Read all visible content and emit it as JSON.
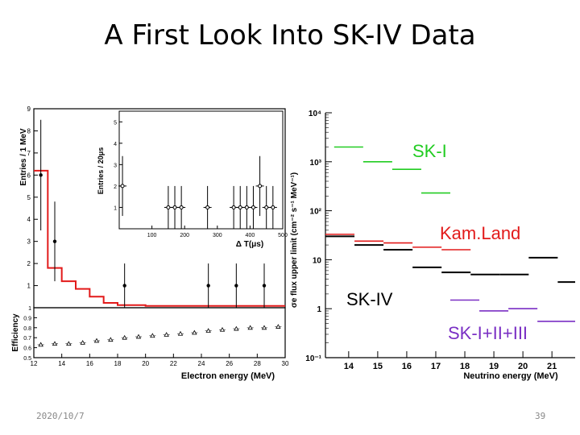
{
  "slide": {
    "title": "A First Look Into SK-IV Data",
    "date": "2020/10/7",
    "page_number": "39"
  },
  "colors": {
    "red": "#e21a1a",
    "green": "#22cc22",
    "purple": "#7a2fc4",
    "black": "#000000"
  },
  "chart_data": [
    {
      "id": "left-main",
      "type": "scatter",
      "title": "",
      "ylabel": "Entries / 1 MeV",
      "ylim": [
        0,
        9
      ],
      "xlim": [
        12,
        30
      ],
      "yticks": [
        1,
        2,
        3,
        4,
        5,
        6,
        7,
        8,
        9
      ],
      "data_points": [
        {
          "x": 12.5,
          "y": 6,
          "err": 2.5
        },
        {
          "x": 13.5,
          "y": 3,
          "err": 1.8
        },
        {
          "x": 18.5,
          "y": 1,
          "err": 1.0
        },
        {
          "x": 24.5,
          "y": 1,
          "err": 1.0
        },
        {
          "x": 26.5,
          "y": 1,
          "err": 1.0
        },
        {
          "x": 28.5,
          "y": 1,
          "err": 1.0
        }
      ],
      "mc_histogram": {
        "edges": [
          12,
          13,
          14,
          15,
          16,
          17,
          18,
          20,
          30
        ],
        "values": [
          6.2,
          1.8,
          1.2,
          0.85,
          0.5,
          0.22,
          0.12,
          0.08
        ]
      }
    },
    {
      "id": "left-efficiency",
      "type": "scatter",
      "ylabel": "Efficiency",
      "xlabel": "Electron energy (MeV)",
      "ylim": [
        0.5,
        1.0
      ],
      "xlim": [
        12,
        30
      ],
      "yticks": [
        0.5,
        0.6,
        0.7,
        0.8,
        0.9,
        1
      ],
      "xticks": [
        12,
        14,
        16,
        18,
        20,
        22,
        24,
        26,
        28,
        30
      ],
      "x": [
        12.5,
        13.5,
        14.5,
        15.5,
        16.5,
        17.5,
        18.5,
        19.5,
        20.5,
        21.5,
        22.5,
        23.5,
        24.5,
        25.5,
        26.5,
        27.5,
        28.5,
        29.5
      ],
      "y": [
        0.63,
        0.64,
        0.64,
        0.65,
        0.67,
        0.68,
        0.7,
        0.71,
        0.72,
        0.73,
        0.74,
        0.75,
        0.77,
        0.78,
        0.79,
        0.8,
        0.8,
        0.81
      ]
    },
    {
      "id": "inset",
      "type": "scatter",
      "ylabel": "Entries / 20μs",
      "xlabel": "Δ T(μs)",
      "xlim": [
        0,
        500
      ],
      "ylim": [
        0,
        5.5
      ],
      "yticks": [
        1,
        2,
        3,
        4,
        5
      ],
      "xticks": [
        100,
        200,
        300,
        400,
        500
      ],
      "points": [
        {
          "x": 10,
          "y": 2,
          "err": 1.4
        },
        {
          "x": 150,
          "y": 1,
          "err": 1.0
        },
        {
          "x": 170,
          "y": 1,
          "err": 1.0
        },
        {
          "x": 190,
          "y": 1,
          "err": 1.0
        },
        {
          "x": 270,
          "y": 1,
          "err": 1.0
        },
        {
          "x": 350,
          "y": 1,
          "err": 1.0
        },
        {
          "x": 370,
          "y": 1,
          "err": 1.0
        },
        {
          "x": 390,
          "y": 1,
          "err": 1.0
        },
        {
          "x": 410,
          "y": 1,
          "err": 1.0
        },
        {
          "x": 430,
          "y": 2,
          "err": 1.4
        },
        {
          "x": 450,
          "y": 1,
          "err": 1.0
        },
        {
          "x": 470,
          "y": 1,
          "err": 1.0
        }
      ]
    },
    {
      "id": "right-flux-limit",
      "type": "line",
      "ylabel": "σe flux upper limit (cm⁻² s⁻¹ MeV⁻¹)",
      "xlabel": "Neutrino energy (MeV)",
      "yscale": "log",
      "ylim": [
        0.1,
        10000
      ],
      "xlim": [
        13.2,
        21.8
      ],
      "ytick_labels": [
        "10⁻¹",
        "1",
        "10",
        "10²",
        "10³",
        "10⁴"
      ],
      "ytick_values": [
        0.1,
        1,
        10,
        100,
        1000,
        10000
      ],
      "xticks": [
        14,
        15,
        16,
        17,
        18,
        19,
        20,
        21
      ],
      "series": [
        {
          "name": "SK-I",
          "color": "green",
          "segments": [
            [
              13.5,
              14.5,
              2000
            ],
            [
              14.5,
              15.5,
              1000
            ],
            [
              15.5,
              16.5,
              700
            ],
            [
              16.5,
              17.5,
              230
            ]
          ]
        },
        {
          "name": "Kam.Land",
          "color": "red",
          "segments": [
            [
              13.2,
              14.2,
              33
            ],
            [
              14.2,
              15.2,
              24
            ],
            [
              15.2,
              16.2,
              22
            ],
            [
              16.2,
              17.2,
              18
            ],
            [
              17.2,
              18.2,
              16
            ]
          ]
        },
        {
          "name": "SK-IV",
          "color": "black",
          "segments": [
            [
              13.2,
              14.2,
              30
            ],
            [
              14.2,
              15.2,
              20
            ],
            [
              15.2,
              16.2,
              16
            ],
            [
              16.2,
              17.2,
              7
            ],
            [
              17.2,
              18.2,
              5.5
            ],
            [
              18.2,
              19.2,
              5
            ],
            [
              19.2,
              20.2,
              5
            ],
            [
              20.2,
              21.2,
              11
            ],
            [
              21.2,
              21.8,
              3.5
            ]
          ]
        },
        {
          "name": "SK-I+II+III",
          "color": "purple",
          "segments": [
            [
              17.5,
              18.5,
              1.5
            ],
            [
              18.5,
              19.5,
              0.9
            ],
            [
              19.5,
              20.5,
              1.0
            ],
            [
              20.5,
              21.8,
              0.55
            ]
          ]
        }
      ],
      "annotations": [
        "SK-I",
        "Kam.Land",
        "SK-IV",
        "SK-I+II+III"
      ]
    }
  ]
}
